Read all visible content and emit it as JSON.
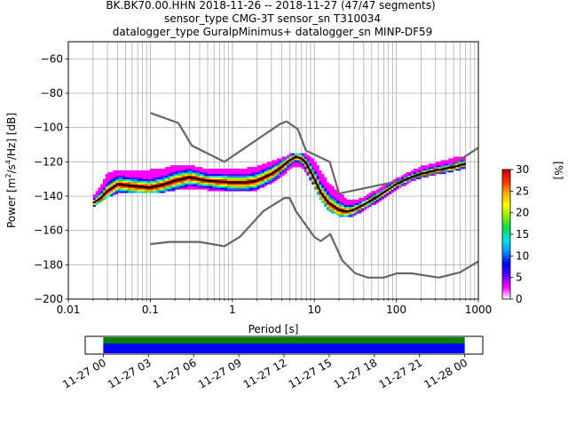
{
  "title_lines": [
    "BK.BK70.00.HHN   2018-11-26 -- 2018-11-27  (47/47 segments)",
    "sensor_type CMG-3T sensor_sn T310034",
    "datalogger_type GuralpMinimus+ datalogger_sn MINP-DF59"
  ],
  "chart_data": {
    "type": "heatmap",
    "title": "BK.BK70.00.HHN   2018-11-26 -- 2018-11-27  (47/47 segments)",
    "xlabel": "Period [s]",
    "ylabel_parts": [
      "Power [m",
      "2",
      "/s",
      "4",
      "/Hz] [dB]"
    ],
    "x_scale": "log",
    "xlim": [
      0.01,
      1000
    ],
    "ylim": [
      -200,
      -50
    ],
    "x_ticks": [
      0.01,
      0.1,
      1,
      10,
      100,
      1000
    ],
    "x_tick_labels": [
      "0.01",
      "0.1",
      "1",
      "10",
      "100",
      "1000"
    ],
    "y_ticks": [
      -200,
      -180,
      -160,
      -140,
      -120,
      -100,
      -80,
      -60
    ],
    "y_tick_labels": [
      "−200",
      "−180",
      "−160",
      "−140",
      "−120",
      "−100",
      "−80",
      "−60"
    ],
    "grid": true,
    "colorbar": {
      "label": "[%]",
      "min": 0,
      "max": 30,
      "ticks": [
        0,
        5,
        10,
        15,
        20,
        25,
        30
      ],
      "tick_labels": [
        "0",
        "5",
        "10",
        "15",
        "20",
        "25",
        "30"
      ],
      "colors": [
        "#ffffff",
        "#ff00ff",
        "#5a00ff",
        "#0000ff",
        "#0090ff",
        "#00e5e5",
        "#00dd55",
        "#88ee00",
        "#ffff00",
        "#ffaa00",
        "#ff3000",
        "#cc0000"
      ]
    },
    "mode_curve": {
      "name": "mode",
      "color": "#000000",
      "x": [
        0.02,
        0.025,
        0.03,
        0.04,
        0.06,
        0.1,
        0.15,
        0.2,
        0.3,
        0.5,
        1,
        1.5,
        2,
        3,
        4,
        5,
        6,
        7,
        8,
        10,
        12,
        15,
        20,
        25,
        30,
        40,
        60,
        100,
        150,
        200,
        300,
        500,
        700
      ],
      "y": [
        -144,
        -141,
        -137,
        -133,
        -134,
        -135,
        -133,
        -131,
        -129,
        -131,
        -132,
        -132,
        -131,
        -127,
        -123,
        -119,
        -117,
        -118,
        -121,
        -130,
        -138,
        -144,
        -148,
        -149,
        -148,
        -145,
        -140,
        -133,
        -129,
        -127,
        -125,
        -123,
        -121
      ]
    },
    "density_band": {
      "x": [
        0.02,
        0.025,
        0.03,
        0.04,
        0.06,
        0.1,
        0.15,
        0.2,
        0.3,
        0.5,
        1,
        1.5,
        2,
        3,
        4,
        5,
        6,
        7,
        8,
        10,
        12,
        15,
        20,
        25,
        30,
        40,
        60,
        100,
        150,
        200,
        300,
        500,
        700
      ],
      "upper": [
        -140,
        -134,
        -127,
        -125,
        -125,
        -125,
        -124,
        -122,
        -122,
        -125,
        -124,
        -124,
        -123,
        -120,
        -118,
        -116,
        -115,
        -115,
        -116,
        -119,
        -126,
        -133,
        -138,
        -142,
        -143,
        -141,
        -136,
        -130,
        -126,
        -123,
        -121,
        -118,
        -117
      ],
      "lower": [
        -146,
        -143,
        -140,
        -138,
        -138,
        -138,
        -137,
        -136,
        -135,
        -136,
        -137,
        -137,
        -136,
        -132,
        -128,
        -124,
        -122,
        -123,
        -126,
        -134,
        -142,
        -148,
        -151,
        -152,
        -151,
        -148,
        -143,
        -136,
        -131,
        -129,
        -127,
        -125,
        -123
      ]
    },
    "reference_curves": [
      {
        "name": "high noise model",
        "color": "#666666",
        "x": [
          0.1,
          0.22,
          0.32,
          0.8,
          3.8,
          4.6,
          6.3,
          7.9,
          15.4,
          20,
          354.8,
          10000
        ],
        "y": [
          -91.5,
          -97.4,
          -110.5,
          -120,
          -98,
          -96.5,
          -101,
          -113.5,
          -120,
          -138.5,
          -126,
          -80.1
        ]
      },
      {
        "name": "low noise model",
        "color": "#666666",
        "x": [
          0.1,
          0.17,
          0.4,
          0.8,
          1.24,
          2.4,
          4.3,
          5,
          6,
          10,
          12,
          15.6,
          21.9,
          31.6,
          45,
          70,
          101,
          154,
          328,
          600,
          1000
        ],
        "y": [
          -168,
          -166.7,
          -166.7,
          -169.2,
          -163.7,
          -148.6,
          -141.1,
          -141.1,
          -149,
          -163.8,
          -166.2,
          -162.1,
          -177.5,
          -185,
          -187.5,
          -187.5,
          -185,
          -185,
          -187.5,
          -184.4,
          -178
        ]
      }
    ],
    "timeline": {
      "tick_labels": [
        "11-27 00",
        "11-27 03",
        "11-27 06",
        "11-27 09",
        "11-27 12",
        "11-27 15",
        "11-27 18",
        "11-27 21",
        "11-28 00"
      ],
      "coverage_color": "#0000ff",
      "segment_color": "#008000",
      "coverage_start_hours": 0,
      "coverage_end_hours": 24,
      "axis_start_hours": -1.2,
      "axis_end_hours": 25.2
    }
  }
}
